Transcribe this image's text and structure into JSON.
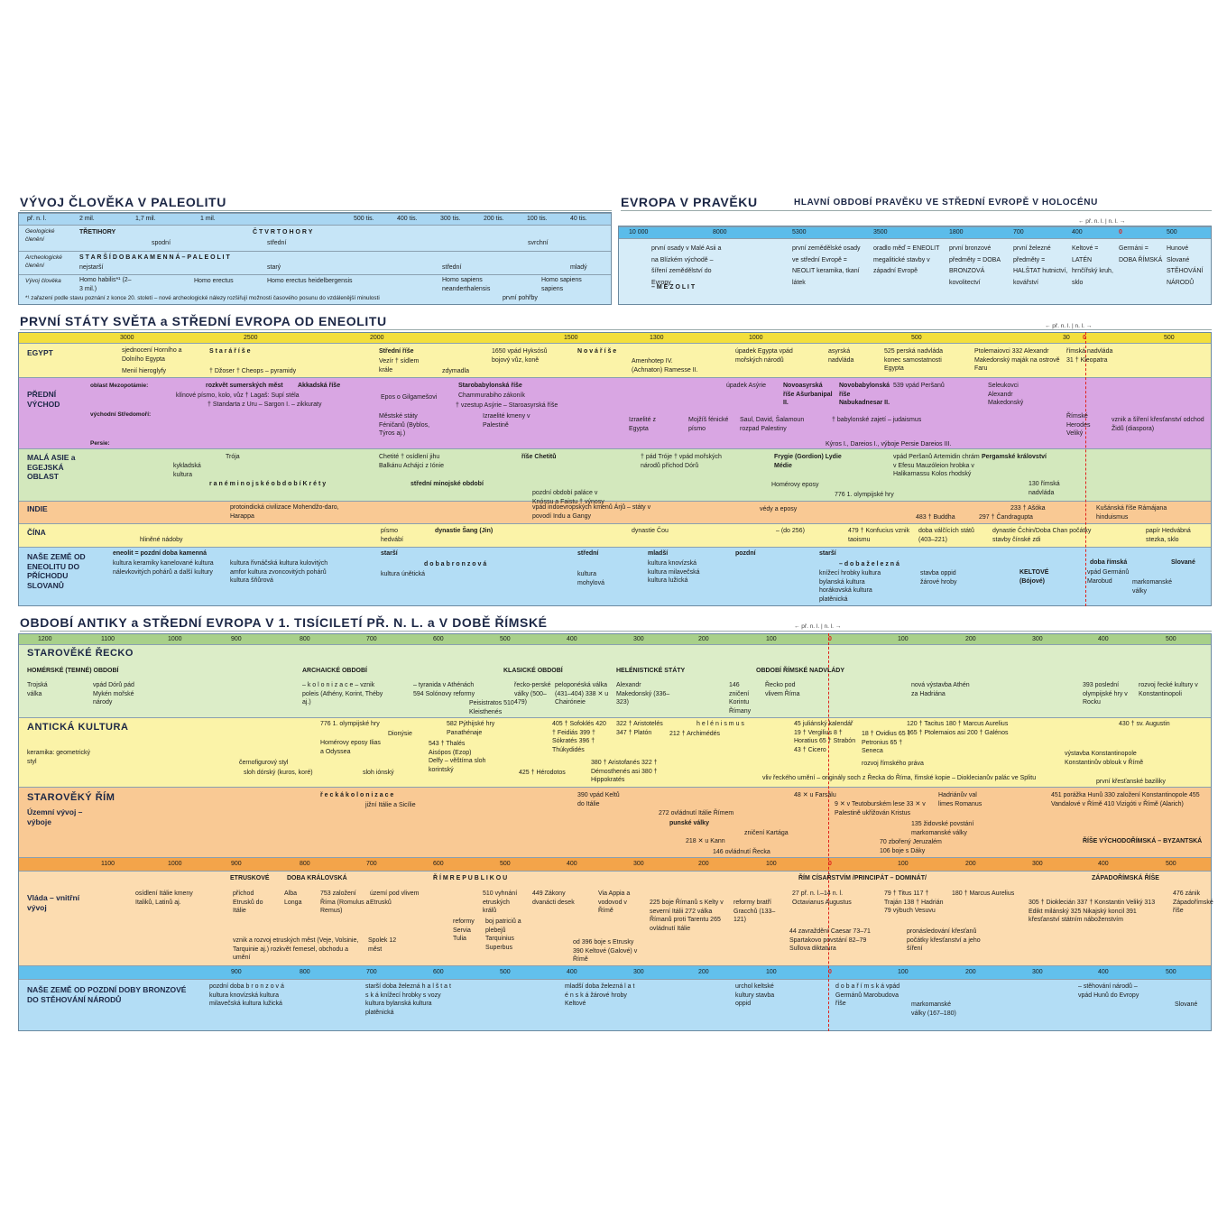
{
  "paleolit": {
    "title": "VÝVOJ ČLOVĚKA V PALEOLITU",
    "scales": [
      [
        "př. n. l.",
        "2 mil.",
        "1,7 mil.",
        "1 mil.",
        "500 tis.",
        "400 tis.",
        "300 tis.",
        "200 tis.",
        "100 tis.",
        "40 tis."
      ]
    ],
    "rows": [
      {
        "label": "Geologické členění",
        "entries": [
          "TŘETIHORY",
          "Č T V R T O H O R Y",
          "spodní",
          "střední",
          "svrchní"
        ]
      },
      {
        "label": "Archeologické členění",
        "entries": [
          "S T A R Š Í   D O B A   K A M E N N Á  –  P A L E O L I T",
          "nejstarší",
          "starý",
          "střední",
          "mladý"
        ]
      },
      {
        "label": "Vývoj člověka",
        "entries": [
          "Homo habilis*¹ (2–3 mil.)",
          "Homo erectus",
          "Homo erectus heidelbergensis",
          "Homo sapiens neanderthalensis",
          "Homo sapiens sapiens",
          "*¹ zařazení podle stavu poznání z konce 20. století – nové archeologické nálezy rozšiřují možnosti časového posunu do vzdálenější minulosti",
          "první pohřby"
        ]
      }
    ]
  },
  "evropa": {
    "title": "EVROPA V PRAVĚKU",
    "subtitle": "HLAVNÍ OBDOBÍ PRAVĚKU VE STŘEDNÍ EVROPĚ V HOLOCÉNU",
    "era": "← př. n. l. | n. l. →",
    "scales": [
      [
        "10 000",
        "8000",
        "5300",
        "3500",
        "1800",
        "700",
        "400",
        "0",
        "500"
      ]
    ],
    "rows": [
      {
        "entries": [
          "první osady v Malé Asii a na Blízkém východě – šíření zemědělství do Evropy",
          "– M E Z O L I T",
          "první zemědělské osady ve střední Evropě = NEOLIT keramika, tkaní látek",
          "oradlo měď = ENEOLIT megalitické stavby v západní Evropě",
          "první bronzové předměty = DOBA BRONZOVÁ kovolitectví",
          "první železné předměty = HALŠTAT hutnictví, kovářství",
          "Keltové = LATÉN hrnčířský kruh, sklo",
          "Germáni = DOBA ŘÍMSKÁ",
          "Hunové Slované STĚHOVÁNÍ NÁRODŮ"
        ]
      }
    ]
  },
  "staty": {
    "title": "PRVNÍ STÁTY SVĚTA a STŘEDNÍ EVROPA OD ENEOLITU",
    "era": "← př. n. l. | n. l. →",
    "scales": [
      [
        "3000",
        "2500",
        "2000",
        "1500",
        "1300",
        "1000",
        "500",
        "30",
        "0",
        "500"
      ]
    ],
    "rows": [
      {
        "label": "EGYPT",
        "entries": [
          "sjednocení Horního a Dolního Egypta",
          "S t a r á   ř í š e",
          "Menií  hieroglyfy",
          "† Džoser † Cheops – pyramidy",
          "Střední říše",
          "Vezír † sídlem krále",
          "zdymadla",
          "1650 vpád Hyksósů bojový vůz, koně",
          "N o v á   ř í š e",
          "Amenhotep IV. (Achnaton) Ramesse II.",
          "úpadek Egypta vpád mořských národů",
          "asyrská nadvláda",
          "525 perská nadvláda konec samostatnosti Egypta",
          "Ptolemaiovci 332 Alexandr Makedonský maják na ostrově Faru",
          "římská nadvláda 31 † Kleopatra"
        ]
      },
      {
        "label": "PŘEDNÍ VÝCHOD",
        "sublabels": [
          "oblast Mezopotámie:",
          "východní Středomoří:",
          "Persie:"
        ],
        "entries": [
          "rozkvět sumerských měst",
          "Akkadská říše",
          "klínové písmo, kolo, vůz † Lagaš: Supí stéla",
          "† Standarta z Uru – Sargon I. – zikkuraty",
          "Epos o Gilgamešovi",
          "Starobabylonská říše",
          "Chammurabiho zákoník",
          "† vzestup Asýrie – Staroasyrská říše",
          "Městské státy Féničanů (Byblos, Týros aj.)",
          "Izraelité kmeny v Palestině",
          "Izraelité z Egypta",
          "Mojžíš fénické písmo",
          "Saul, David, Šalamoun rozpad Palestiny",
          "úpadek Asýrie",
          "Novoasyrská říše Ašurbanipal II.",
          "Novobabylonská říše Nabukadnesar II.",
          "539 vpád Peršanů",
          "† babylonské zajetí – judaismus",
          "Kýros I., Dareios I., výboje Persie Dareios III.",
          "Seleukovci Alexandr Makedonský",
          "Římské Herodes Veliký",
          "vznik a šíření křesťanství odchod Židů (diaspora)"
        ]
      },
      {
        "label": "MALÁ ASIE a EGEJSKÁ OBLAST",
        "entries": [
          "Trója",
          "kykladská kultura",
          "r a n é   m i n o j s k é   o b d o b í   K r é t y",
          "Chetité † osídlení jihu Balkánu Achájci z Iónie",
          "říše Chetitů",
          "střední minojské období",
          "pozdní období paláce v Knóssu a Faistu † výnosy",
          "† pád Tróje † vpád mořských národů příchod Dórů",
          "Frygie (Gordion) Lydie Médie",
          "Homérovy eposy",
          "776 1. olympijské hry",
          "vpád Peršanů Artemidin chrám v Efesu Mauzóleion hrobka v Halikarnassu Kolos rhodský",
          "Pergamské království",
          "130 římská nadvláda"
        ]
      },
      {
        "label": "INDIE",
        "entries": [
          "protoindická civilizace Mohendžo-daro, Harappa",
          "vpád indoevropských kmenů Árjů – státy v povodí Indu a Gangy",
          "védy a eposy",
          "483 † Buddha",
          "297 † Čandragupta",
          "233 † Ašóka",
          "Kušánská říše Rámájana hinduismus"
        ]
      },
      {
        "label": "ČÍNA",
        "entries": [
          "hliněné nádoby",
          "písmo hedvábí",
          "dynastie Šang (Jin)",
          "dynastie Čou",
          "– (do 256)",
          "479 † Konfucius vznik taoismu",
          "doba válčících států (403–221)",
          "dynastie Čchin/Doba Chan počátky stavby čínské zdi",
          "papír Hedvábná stezka, sklo"
        ]
      },
      {
        "label": "NAŠE ZEMĚ OD ENEOLITU DO PŘÍCHODU SLOVANŮ",
        "entries": [
          "eneolit = pozdní doba kamenná",
          "kultura keramiky kanelované kultura nálevkovitých pohárů a další kultury",
          "kultura řivnáčská kultura kulovitých amfor kultura zvoncovitých pohárů kultura šňůrová",
          "starší",
          "kultura únětická",
          "d o b a   b r o n z o v á",
          "střední",
          "kultura mohylová",
          "mladší",
          "kultura knovízská kultura milavečská kultura lužická",
          "pozdní",
          "starší",
          "– d o b a   ž e l e z n á",
          "knížecí hrobky kultura bylanská kultura horákovská kultura platěnická",
          "stavba oppid žárové hroby",
          "KELTOVÉ (Bójové)",
          "doba římská",
          "vpád Germánů Marobud",
          "markomanské války",
          "Slované"
        ]
      }
    ]
  },
  "antika": {
    "title": "OBDOBÍ ANTIKY a STŘEDNÍ EVROPA V 1. TISÍCILETÍ PŘ. N. L. a V DOBĚ ŘÍMSKÉ",
    "era": "← př. n. l. | n. l. →",
    "scales": [
      [
        "1200",
        "1100",
        "1000",
        "900",
        "800",
        "700",
        "600",
        "500",
        "400",
        "300",
        "200",
        "100",
        "0",
        "100",
        "200",
        "300",
        "400",
        "500"
      ],
      [
        "1100",
        "1000",
        "900",
        "800",
        "700",
        "600",
        "500",
        "400",
        "300",
        "200",
        "100",
        "0",
        "100",
        "200",
        "300",
        "400",
        "500"
      ],
      [
        "900",
        "800",
        "700",
        "600",
        "500",
        "400",
        "300",
        "200",
        "100",
        "0",
        "100",
        "200",
        "300",
        "400",
        "500"
      ]
    ],
    "rows": [
      {
        "label": "STAROVĚKÉ ŘECKO",
        "entries": [
          "HOMÉRSKÉ (TEMNÉ) OBDOBÍ",
          "ARCHAICKÉ OBDOBÍ",
          "KLASICKÉ OBDOBÍ",
          "HELÉNISTICKÉ STÁTY",
          "OBDOBÍ ŘÍMSKÉ NADVLÁDY",
          "Trojská válka",
          "vpád Dórů pád Mykén mořské národy",
          "– k o l o n i z a c e – vznik poleis (Athény, Korint, Théby aj.)",
          "– tyranida v Athénách 594 Solónovy reformy",
          "Peisistratos 510 Kleisthenés",
          "řecko-perské války (500–479)",
          "peloponéská válka (431–404) 338 ✕ u Chairóneie",
          "Alexandr Makedonský (336–323)",
          "146 zničení Korintu Římany",
          "Řecko pod vlivem Říma",
          "nová výstavba Athén za Hadriána",
          "393 poslední olympijské hry v Rocku",
          "rozvoj řecké kultury v Konstantinopoli"
        ]
      },
      {
        "label": "ANTICKÁ KULTURA",
        "entries": [
          "776 1. olympijské hry",
          "Dionýsie",
          "Homérovy eposy Ilias a Odyssea",
          "keramika: geometrický styl",
          "černofigurový styl",
          "sloh dórský (kuros, koré)",
          "sloh iónský",
          "582 Pýthijské hry Panathénaje",
          "543 † Thalés Aisópos (Ezop) Delfy – věštírna sloh korintský",
          "425 † Hérodotos",
          "405 † Sofoklés 420 † Feidiás 399 † Sókratés 396 † Thúkydidés",
          "322 † Aristotelés 347 † Platón",
          "380 † Aristofanés 322 † Démosthenés asi 380 † Hippokratés",
          "212 † Archimédés",
          "h e l é n i s m u s",
          "45 juliánský kalendář 19 † Vergilius 8 † Horatius 65 † Strabón 43 † Cicero",
          "18 † Ovidius 65 † Petronius 65 † Seneca",
          "rozvoj římského práva",
          "120 † Tacitus 180 † Marcus Aurelius 165 † Ptolemaios asi 200 † Galénos",
          "vliv řeckého umění – originály soch z Řecka do Říma, římské kopie – Dioklecianův palác ve Splitu",
          "430 † sv. Augustin",
          "výstavba Konstantinopole Konstantinův oblouk v Římě",
          "první křesťanské baziliky"
        ]
      },
      {
        "label": "STAROVĚKÝ ŘÍM",
        "sublabel": "Územní vývoj – výboje",
        "entries": [
          "ř e c k á   k o l o n i z a c e",
          "jižní Itálie a Sicílie",
          "390 vpád Keltů do Itálie",
          "272 ovládnutí Itálie Římem",
          "punské války",
          "218 ✕ u Kann",
          "146 ovládnutí Řecka",
          "zničení Kartága",
          "48 ✕ u Farsálu",
          "9 ✕ v Teutoburském lese 33 ✕ v Palestině ukřižován Kristus",
          "Hadriánův val limes Romanus",
          "135 židovské povstání markomanské války",
          "70 zbořený Jeruzalém 106 boje s Dáky",
          "451 porážka Hunů 330 založení Konstantinopole 455 Vandalové v Římě 410 Vizigóti v Římě (Alarich)",
          "ŘÍŠE VÝCHODOŘÍMSKÁ – BYZANTSKÁ"
        ]
      },
      {
        "label": "Vláda – vnitřní vývoj",
        "entries": [
          "ETRUSKOVÉ",
          "DOBA KRÁLOVSKÁ",
          "Ř Í M   R E P U B L I K O U",
          "ŘÍM CÍSAŘSTVÍM /PRINCIPÁT – DOMINÁT/",
          "ZÁPADOŘÍMSKÁ ŘÍŠE",
          "osídlení Itálie kmeny Italiků, Latinů aj.",
          "příchod Etrusků do Itálie",
          "Alba Longa",
          "753 založení Říma (Romulus a Remus)",
          "území pod vlivem Etrusků",
          "vznik a rozvoj etruských měst (Veje, Volsinie, Tarquinie aj.) rozkvět řemesel, obchodu a umění",
          "Spolek 12 měst",
          "510 vyhnání etruských králů",
          "449 Zákony dvanácti desek",
          "reformy Servia Tulia",
          "boj patriciů a plebejů Tarquinius Superbus",
          "Via Appia a vodovod v Římě",
          "od 396 boje s Etrusky 390 Keltové (Galové) v Římě",
          "225 boje Římanů s Kelty v severní Itálii 272 válka Římanů proti Tarentu 265 ovládnutí Itálie",
          "reformy bratří Gracchů (133–121)",
          "27 př. n. l.–14 n. l. Octavianus Augustus",
          "44 zavraždění Caesar 73–71 Spartakovo povstání 82–79 Sullova diktatura",
          "79 † Titus 117 † Traján 138 † Hadrián 79 výbuch Vesuvu",
          "180 † Marcus Aurelius",
          "pronásledování křesťanů počátky křesťanství a jeho šíření",
          "305 † Dioklecián 337 † Konstantin Veliký 313 Edikt milánský 325 Nikajský koncil 391 křesťanství státním náboženstvím",
          "476 zánik Západořímské říše"
        ]
      },
      {
        "label": "NAŠE ZEMĚ OD POZDNÍ DOBY BRONZOVÉ DO STĚHOVÁNÍ NÁRODŮ",
        "entries": [
          "pozdní doba b r o n z o v á kultura knovízská kultura milavečská kultura lužická",
          "starší doba železná h a l š t a t s k á knížecí hrobky s vozy kultura bylanská kultura platěnická",
          "mladší doba železná l a t é n s k á žárové hroby Keltové",
          "urchol keltské kultury stavba oppid",
          "d o b a   ř í m s k á vpád Germánů Marobudova říše",
          "markomanské války (167–180)",
          "– stěhování národů – vpád Hunů do Evropy",
          "Slované"
        ]
      }
    ]
  }
}
